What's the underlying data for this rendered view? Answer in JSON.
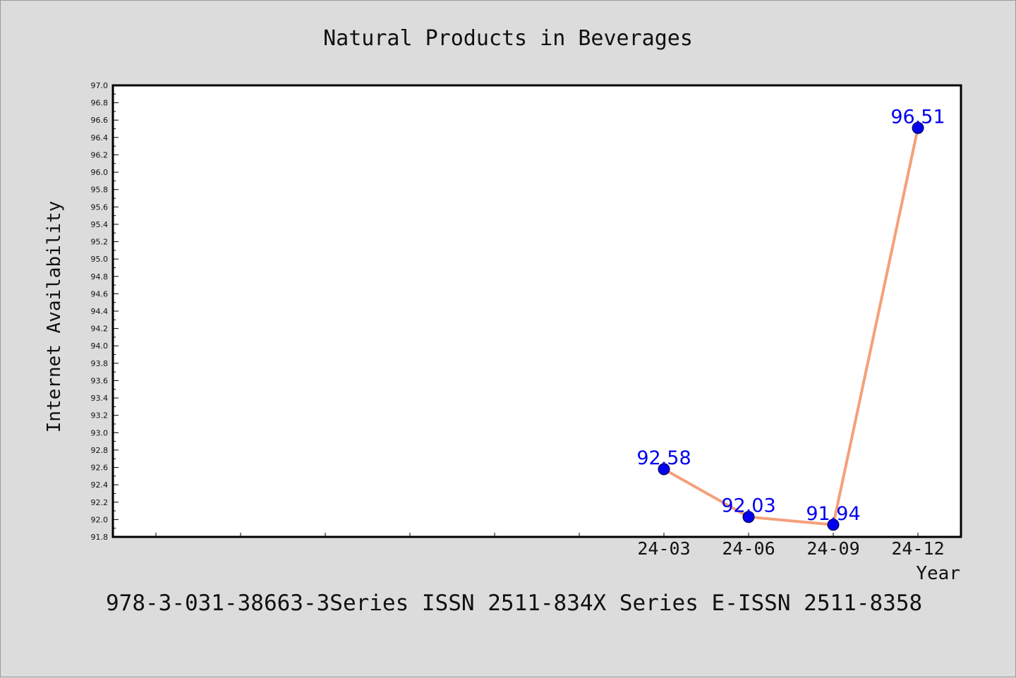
{
  "chart_data": {
    "type": "line",
    "title": "Natural Products in Beverages",
    "xlabel": "Year",
    "ylabel": "Internet Availability",
    "categories": [
      "24-03",
      "24-06",
      "24-09",
      "24-12"
    ],
    "series": [
      {
        "values": [
          92.58,
          92.03,
          91.94,
          96.51
        ]
      }
    ],
    "data_labels": [
      "92.58",
      "92.03",
      "91.94",
      "96.51"
    ],
    "ylim": [
      91.8,
      97.0
    ],
    "yticks": [
      "91.8",
      "92.0",
      "92.2",
      "92.4",
      "92.6",
      "92.8",
      "93.0",
      "93.2",
      "93.4",
      "93.6",
      "93.8",
      "94.0",
      "94.2",
      "94.4",
      "94.6",
      "94.8",
      "95.0",
      "95.2",
      "95.4",
      "95.6",
      "95.8",
      "96.0",
      "96.2",
      "96.4",
      "96.6",
      "96.8",
      "97.0"
    ],
    "grid": false,
    "legend": "none",
    "line_color": "#f4a07a",
    "marker_color": "#0000ee",
    "label_color": "#0000ee"
  },
  "footer_text": "978-3-031-38663-3Series ISSN 2511-834X Series E-ISSN 2511-8358"
}
